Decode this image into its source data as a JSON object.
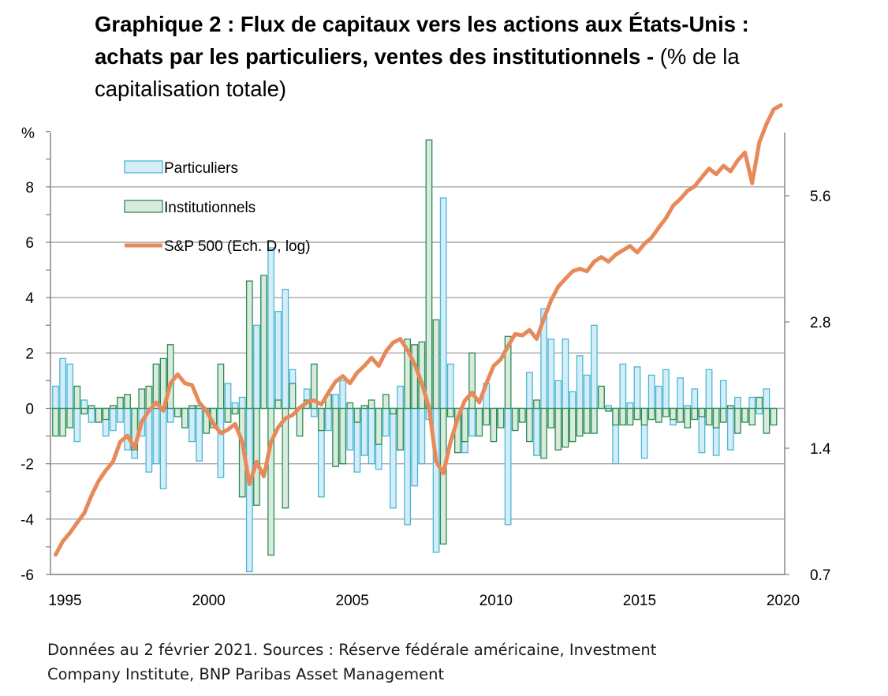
{
  "title": {
    "bold": "Graphique 2 : Flux de capitaux vers les actions aux États-Unis : achats par les particuliers, ventes des institutionnels - ",
    "normal": "(% de la capitalisation totale)"
  },
  "footnote": {
    "line1": "Données au 2 février 2021. Sources : Réserve fédérale américaine, Investment",
    "line2": "Company Institute, BNP Paribas Asset Management"
  },
  "colors": {
    "particuliers_fill": "#d4eef8",
    "particuliers_stroke": "#4eb6d6",
    "institutionnels_fill": "#d7ecdc",
    "institutionnels_stroke": "#2e8a55",
    "sp500": "#e8895a",
    "grid": "#a6a6a6",
    "axis": "#7f7f7f"
  },
  "chart_data": {
    "type": "bar",
    "ylabel": "%",
    "ylim": [
      -6,
      10
    ],
    "left_ticks": [
      "-6",
      "-4",
      "-2",
      "0",
      "2",
      "4",
      "6",
      "8"
    ],
    "left_tick_values": [
      -6,
      -4,
      -2,
      0,
      2,
      4,
      6,
      8
    ],
    "right_ticks": [
      "0.7",
      "1.4",
      "2.8",
      "5.6"
    ],
    "right_tick_values": [
      0.7,
      1.4,
      2.8,
      5.6
    ],
    "x_ticks": [
      "1995",
      "2000",
      "2005",
      "2010",
      "2015",
      "2020"
    ],
    "x_tick_values": [
      1995,
      2000,
      2005,
      2010,
      2015,
      2020
    ],
    "xlim": [
      1995,
      2020.25
    ],
    "legend": [
      "Particuliers",
      "Institutionnels",
      "S&P 500 (Ech. D, log)"
    ],
    "legend_position": "top-left",
    "grid": true,
    "series": [
      {
        "name": "Particuliers",
        "type": "bar",
        "quarters": [
          1995.0,
          1995.25,
          1995.5,
          1995.75,
          1996.0,
          1996.25,
          1996.5,
          1996.75,
          1997.0,
          1997.25,
          1997.5,
          1997.75,
          1998.0,
          1998.25,
          1998.5,
          1998.75,
          1999.0,
          1999.25,
          1999.5,
          1999.75,
          2000.0,
          2000.25,
          2000.5,
          2000.75,
          2001.0,
          2001.25,
          2001.5,
          2001.75,
          2002.0,
          2002.25,
          2002.5,
          2002.75,
          2003.0,
          2003.25,
          2003.5,
          2003.75,
          2004.0,
          2004.25,
          2004.5,
          2004.75,
          2005.0,
          2005.25,
          2005.5,
          2005.75,
          2006.0,
          2006.25,
          2006.5,
          2006.75,
          2007.0,
          2007.25,
          2007.5,
          2007.75,
          2008.0,
          2008.25,
          2008.5,
          2008.75,
          2009.0,
          2009.25,
          2009.5,
          2009.75,
          2010.0,
          2010.25,
          2010.5,
          2010.75,
          2011.0,
          2011.25,
          2011.5,
          2011.75,
          2012.0,
          2012.25,
          2012.5,
          2012.75,
          2013.0,
          2013.25,
          2013.5,
          2013.75,
          2014.0,
          2014.25,
          2014.5,
          2014.75,
          2015.0,
          2015.25,
          2015.5,
          2015.75,
          2016.0,
          2016.25,
          2016.5,
          2016.75,
          2017.0,
          2017.25,
          2017.5,
          2017.75,
          2018.0,
          2018.25,
          2018.5,
          2018.75,
          2019.0,
          2019.25,
          2019.5,
          2019.75,
          2020.0
        ],
        "values": [
          0.8,
          1.8,
          1.6,
          -1.2,
          0.3,
          -0.5,
          -0.3,
          -1.0,
          -0.8,
          -0.5,
          -1.5,
          -1.8,
          -1.0,
          -2.3,
          -2.0,
          -2.9,
          -0.5,
          0.0,
          -0.6,
          -1.2,
          -1.9,
          -0.7,
          -0.5,
          -2.5,
          0.9,
          0.2,
          0.4,
          -5.9,
          3.0,
          4.5,
          5.8,
          3.5,
          4.3,
          1.4,
          -0.2,
          0.7,
          -0.3,
          -3.2,
          -0.8,
          0.5,
          1.0,
          -1.5,
          -2.3,
          -1.7,
          -2.0,
          -2.2,
          -1.0,
          -3.6,
          0.8,
          -4.2,
          -2.8,
          -2.0,
          -0.4,
          -5.2,
          7.6,
          1.6,
          -0.6,
          -1.6,
          -1.0,
          -0.3,
          0.9,
          -0.4,
          -0.6,
          -4.2,
          -0.7,
          -0.2,
          1.3,
          -1.7,
          3.6,
          2.5,
          1.0,
          2.5,
          0.6,
          1.9,
          1.2,
          3.0,
          0.7,
          0.1,
          -2.0,
          1.6,
          0.2,
          1.5,
          -1.8,
          1.2,
          0.8,
          1.4,
          -0.6,
          1.1,
          0.1,
          0.7,
          -1.6,
          1.4,
          -1.7,
          1.0,
          -1.5,
          0.4,
          -0.1,
          0.4,
          -0.2,
          0.7,
          -0.1
        ]
      },
      {
        "name": "Institutionnels",
        "type": "bar",
        "quarters": [
          1995.0,
          1995.25,
          1995.5,
          1995.75,
          1996.0,
          1996.25,
          1996.5,
          1996.75,
          1997.0,
          1997.25,
          1997.5,
          1997.75,
          1998.0,
          1998.25,
          1998.5,
          1998.75,
          1999.0,
          1999.25,
          1999.5,
          1999.75,
          2000.0,
          2000.25,
          2000.5,
          2000.75,
          2001.0,
          2001.25,
          2001.5,
          2001.75,
          2002.0,
          2002.25,
          2002.5,
          2002.75,
          2003.0,
          2003.25,
          2003.5,
          2003.75,
          2004.0,
          2004.25,
          2004.5,
          2004.75,
          2005.0,
          2005.25,
          2005.5,
          2005.75,
          2006.0,
          2006.25,
          2006.5,
          2006.75,
          2007.0,
          2007.25,
          2007.5,
          2007.75,
          2008.0,
          2008.25,
          2008.5,
          2008.75,
          2009.0,
          2009.25,
          2009.5,
          2009.75,
          2010.0,
          2010.25,
          2010.5,
          2010.75,
          2011.0,
          2011.25,
          2011.5,
          2011.75,
          2012.0,
          2012.25,
          2012.5,
          2012.75,
          2013.0,
          2013.25,
          2013.5,
          2013.75,
          2014.0,
          2014.25,
          2014.5,
          2014.75,
          2015.0,
          2015.25,
          2015.5,
          2015.75,
          2016.0,
          2016.25,
          2016.5,
          2016.75,
          2017.0,
          2017.25,
          2017.5,
          2017.75,
          2018.0,
          2018.25,
          2018.5,
          2018.75,
          2019.0,
          2019.25,
          2019.5,
          2019.75,
          2020.0
        ],
        "values": [
          -1.0,
          -1.0,
          -0.7,
          0.8,
          -0.2,
          0.1,
          -0.5,
          -0.4,
          0.1,
          0.4,
          0.5,
          -1.5,
          0.7,
          0.8,
          1.6,
          1.8,
          2.3,
          -0.3,
          -0.7,
          0.1,
          0.1,
          -0.9,
          -0.7,
          1.6,
          -0.5,
          -0.2,
          -3.2,
          4.6,
          -3.5,
          4.8,
          -5.3,
          0.3,
          -3.6,
          0.9,
          -1.0,
          0.3,
          1.6,
          -0.8,
          0.5,
          -2.1,
          -2.0,
          0.2,
          -0.5,
          0.1,
          0.3,
          -1.3,
          0.5,
          -0.2,
          -1.5,
          2.5,
          2.3,
          2.4,
          9.7,
          3.2,
          -4.9,
          -0.3,
          -1.6,
          -1.2,
          2.0,
          -1.0,
          -0.6,
          -1.2,
          -0.7,
          2.6,
          -0.8,
          -0.5,
          -1.2,
          0.3,
          -1.8,
          -0.7,
          -1.5,
          -1.4,
          -1.2,
          -1.0,
          -0.9,
          -0.9,
          0.8,
          -0.1,
          -0.6,
          -0.6,
          -0.6,
          -0.4,
          -0.6,
          -0.4,
          -0.5,
          -0.3,
          -0.4,
          -0.5,
          -0.7,
          -0.4,
          -0.3,
          -0.6,
          -0.7,
          -0.5,
          0.1,
          -0.9,
          -0.5,
          -0.6,
          0.4,
          -0.9,
          -0.6
        ]
      },
      {
        "name": "S&P 500 (Ech. D, log)",
        "type": "line",
        "axis": "right-log",
        "x": [
          1995.0,
          1995.25,
          1995.5,
          1995.75,
          1996.0,
          1996.25,
          1996.5,
          1996.75,
          1997.0,
          1997.25,
          1997.5,
          1997.75,
          1998.0,
          1998.25,
          1998.5,
          1998.75,
          1999.0,
          1999.25,
          1999.5,
          1999.75,
          2000.0,
          2000.25,
          2000.5,
          2000.75,
          2001.0,
          2001.25,
          2001.5,
          2001.75,
          2002.0,
          2002.25,
          2002.5,
          2002.75,
          2003.0,
          2003.25,
          2003.5,
          2003.75,
          2004.0,
          2004.25,
          2004.5,
          2004.75,
          2005.0,
          2005.25,
          2005.5,
          2005.75,
          2006.0,
          2006.25,
          2006.5,
          2006.75,
          2007.0,
          2007.25,
          2007.5,
          2007.75,
          2008.0,
          2008.25,
          2008.5,
          2008.75,
          2009.0,
          2009.25,
          2009.5,
          2009.75,
          2010.0,
          2010.25,
          2010.5,
          2010.75,
          2011.0,
          2011.25,
          2011.5,
          2011.75,
          2012.0,
          2012.25,
          2012.5,
          2012.75,
          2013.0,
          2013.25,
          2013.5,
          2013.75,
          2014.0,
          2014.25,
          2014.5,
          2014.75,
          2015.0,
          2015.25,
          2015.5,
          2015.75,
          2016.0,
          2016.25,
          2016.5,
          2016.75,
          2017.0,
          2017.25,
          2017.5,
          2017.75,
          2018.0,
          2018.25,
          2018.5,
          2018.75,
          2019.0,
          2019.25,
          2019.5,
          2019.75,
          2020.0,
          2020.25
        ],
        "values": [
          0.78,
          0.84,
          0.88,
          0.93,
          0.98,
          1.08,
          1.17,
          1.24,
          1.3,
          1.45,
          1.5,
          1.4,
          1.62,
          1.72,
          1.8,
          1.72,
          2.0,
          2.1,
          2.0,
          1.98,
          1.8,
          1.72,
          1.6,
          1.52,
          1.55,
          1.6,
          1.45,
          1.15,
          1.3,
          1.2,
          1.45,
          1.57,
          1.65,
          1.68,
          1.75,
          1.8,
          1.82,
          1.78,
          1.9,
          2.02,
          2.08,
          2.0,
          2.12,
          2.2,
          2.3,
          2.2,
          2.38,
          2.5,
          2.55,
          2.4,
          2.22,
          2.0,
          1.75,
          1.3,
          1.22,
          1.45,
          1.65,
          1.82,
          1.9,
          1.8,
          2.0,
          2.2,
          2.28,
          2.45,
          2.62,
          2.6,
          2.68,
          2.55,
          2.85,
          3.15,
          3.4,
          3.55,
          3.7,
          3.75,
          3.7,
          3.9,
          4.0,
          3.9,
          4.05,
          4.15,
          4.25,
          4.1,
          4.3,
          4.45,
          4.7,
          4.95,
          5.3,
          5.5,
          5.75,
          5.9,
          6.2,
          6.5,
          6.3,
          6.6,
          6.4,
          6.8,
          7.1,
          6.0,
          7.5,
          8.3,
          9.0,
          9.2
        ]
      }
    ]
  }
}
